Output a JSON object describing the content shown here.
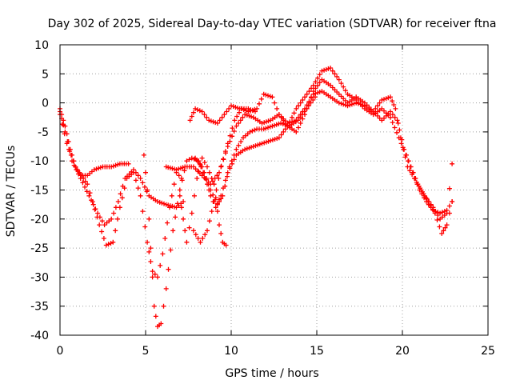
{
  "chart_data": {
    "type": "scatter",
    "title": "Day 302 of 2025, Sidereal Day-to-day VTEC variation (SDTVAR) for receiver ftna",
    "xlabel": "GPS time / hours",
    "ylabel": "SDTVAR / TECUs",
    "xlim": [
      0,
      25
    ],
    "ylim": [
      -40,
      10
    ],
    "xticks": [
      "0",
      "5",
      "10",
      "15",
      "20",
      "25"
    ],
    "yticks": [
      "10",
      "5",
      "0",
      "-5",
      "-10",
      "-15",
      "-20",
      "-25",
      "-30",
      "-35",
      "-40"
    ],
    "grid": true,
    "marker": "plus",
    "color": "#ff0000",
    "series": [
      {
        "points": [
          [
            0,
            -1
          ],
          [
            0.3,
            -4
          ],
          [
            0.6,
            -8
          ],
          [
            0.9,
            -11
          ],
          [
            1.2,
            -12.5
          ],
          [
            1.6,
            -12.5
          ],
          [
            2,
            -11.5
          ],
          [
            2.5,
            -11
          ],
          [
            3,
            -11
          ],
          [
            3.5,
            -10.5
          ],
          [
            4,
            -10.5
          ]
        ]
      },
      {
        "points": [
          [
            0,
            -1.5
          ],
          [
            0.3,
            -5
          ],
          [
            0.7,
            -10
          ],
          [
            1.2,
            -13
          ],
          [
            1.7,
            -16
          ],
          [
            2.2,
            -19
          ],
          [
            2.6,
            -21
          ],
          [
            3,
            -20
          ],
          [
            3.4,
            -17
          ],
          [
            3.8,
            -13
          ],
          [
            4.3,
            -11.5
          ],
          [
            4.7,
            -13
          ],
          [
            5.2,
            -16
          ],
          [
            5.7,
            -17
          ],
          [
            6.2,
            -17.5
          ],
          [
            6.8,
            -18
          ],
          [
            7.2,
            -17
          ]
        ]
      },
      {
        "points": [
          [
            0,
            -2
          ],
          [
            0.4,
            -7
          ],
          [
            0.9,
            -11
          ],
          [
            1.6,
            -14
          ],
          [
            1.9,
            -17
          ],
          [
            2.3,
            -21
          ],
          [
            2.7,
            -24.5
          ],
          [
            3.1,
            -24
          ],
          [
            3.5,
            -18
          ],
          [
            3.9,
            -13
          ],
          [
            4.3,
            -12
          ],
          [
            4.7,
            -16
          ],
          [
            5.1,
            -24
          ],
          [
            5.4,
            -29
          ],
          [
            5.7,
            -30
          ],
          [
            6,
            -26
          ],
          [
            6.4,
            -18
          ],
          [
            6.8,
            -12
          ],
          [
            7.1,
            -13
          ]
        ]
      },
      {
        "points": [
          [
            4.9,
            -9
          ],
          [
            5.1,
            -15
          ],
          [
            5.3,
            -25
          ],
          [
            5.5,
            -35
          ],
          [
            5.7,
            -38.5
          ],
          [
            5.9,
            -38
          ],
          [
            6.2,
            -32
          ],
          [
            6.6,
            -22
          ],
          [
            7,
            -15
          ],
          [
            7.4,
            -10
          ],
          [
            7.7,
            -9.5
          ],
          [
            8.1,
            -10
          ],
          [
            8.5,
            -13
          ],
          [
            8.8,
            -16
          ],
          [
            9.1,
            -18
          ],
          [
            9.4,
            -16
          ],
          [
            9.8,
            -12
          ],
          [
            10.3,
            -9
          ],
          [
            10.8,
            -8
          ],
          [
            11.3,
            -7.5
          ],
          [
            11.8,
            -7
          ],
          [
            12.3,
            -6.5
          ],
          [
            12.8,
            -6
          ],
          [
            13.3,
            -4
          ],
          [
            13.8,
            -1
          ],
          [
            14.3,
            1
          ],
          [
            14.8,
            3
          ],
          [
            15.3,
            5.5
          ],
          [
            15.8,
            6
          ],
          [
            16.3,
            4
          ],
          [
            16.8,
            1.5
          ],
          [
            17.3,
            0.5
          ],
          [
            17.8,
            -1
          ],
          [
            18.3,
            -2
          ],
          [
            18.8,
            -1
          ],
          [
            19.3,
            -2.5
          ],
          [
            19.8,
            -6
          ],
          [
            20.2,
            -9
          ],
          [
            20.6,
            -12
          ],
          [
            21,
            -15
          ],
          [
            21.4,
            -17
          ],
          [
            21.8,
            -18.5
          ],
          [
            22.2,
            -19
          ],
          [
            22.6,
            -18.5
          ],
          [
            22.9,
            -17
          ]
        ]
      },
      {
        "points": [
          [
            7.8,
            -22
          ],
          [
            8.2,
            -24
          ],
          [
            8.6,
            -22
          ],
          [
            9,
            -17
          ],
          [
            9.4,
            -11
          ],
          [
            9.8,
            -7
          ],
          [
            10.2,
            -3
          ],
          [
            10.6,
            -1
          ],
          [
            11,
            -1.5
          ],
          [
            11.5,
            -1
          ],
          [
            11.9,
            1.5
          ],
          [
            12.4,
            1
          ],
          [
            12.8,
            -2
          ],
          [
            13.3,
            -4
          ],
          [
            13.8,
            -5
          ],
          [
            14.3,
            -2
          ],
          [
            14.8,
            2
          ],
          [
            15.3,
            4
          ],
          [
            15.8,
            3
          ],
          [
            16.3,
            1.5
          ],
          [
            16.8,
            0
          ],
          [
            17.3,
            1
          ],
          [
            17.8,
            0
          ],
          [
            18.3,
            -1.5
          ],
          [
            18.8,
            0.5
          ],
          [
            19.3,
            1
          ],
          [
            19.6,
            -1
          ],
          [
            19.9,
            -6
          ],
          [
            20.3,
            -11
          ],
          [
            20.7,
            -13
          ],
          [
            21.1,
            -15
          ],
          [
            21.5,
            -17
          ],
          [
            21.9,
            -19
          ],
          [
            22.3,
            -22.5
          ],
          [
            22.6,
            -21
          ],
          [
            22.9,
            -17
          ]
        ]
      },
      {
        "points": [
          [
            6.2,
            -11
          ],
          [
            6.8,
            -11.5
          ],
          [
            7.3,
            -11
          ],
          [
            7.8,
            -11
          ],
          [
            8.3,
            -12.5
          ],
          [
            8.8,
            -14
          ],
          [
            9.3,
            -12
          ],
          [
            9.8,
            -7.5
          ],
          [
            10.3,
            -4
          ],
          [
            10.8,
            -2
          ],
          [
            11.3,
            -2.5
          ],
          [
            11.8,
            -3.5
          ],
          [
            12.3,
            -3
          ],
          [
            12.8,
            -2
          ],
          [
            13.3,
            -3.5
          ],
          [
            13.8,
            -3
          ],
          [
            14.3,
            -1
          ],
          [
            14.8,
            1.5
          ],
          [
            15.3,
            2
          ],
          [
            15.8,
            1
          ],
          [
            16.3,
            0
          ],
          [
            16.8,
            -0.5
          ],
          [
            17.3,
            0
          ],
          [
            17.8,
            -0.5
          ],
          [
            18.3,
            -1.5
          ],
          [
            18.8,
            -3
          ],
          [
            19.3,
            -1.5
          ],
          [
            19.7,
            -3
          ],
          [
            20.1,
            -8
          ],
          [
            20.5,
            -11
          ],
          [
            20.9,
            -14
          ],
          [
            21.3,
            -16
          ],
          [
            21.8,
            -18
          ],
          [
            22.2,
            -20
          ],
          [
            22.6,
            -19
          ],
          [
            22.9,
            -10.5
          ]
        ]
      },
      {
        "points": [
          [
            7.6,
            -3
          ],
          [
            7.9,
            -1
          ],
          [
            8.3,
            -1.5
          ],
          [
            8.7,
            -3
          ],
          [
            9.2,
            -3.5
          ],
          [
            9.6,
            -2
          ],
          [
            10,
            -0.5
          ],
          [
            10.5,
            -1
          ],
          [
            11,
            -1
          ],
          [
            11.4,
            -1.5
          ]
        ]
      },
      {
        "points": [
          [
            7.9,
            -9.5
          ],
          [
            8.3,
            -11
          ],
          [
            8.8,
            -15
          ],
          [
            9.2,
            -17.5
          ],
          [
            9.5,
            -16
          ],
          [
            9.9,
            -11
          ],
          [
            10.3,
            -8
          ],
          [
            10.7,
            -6
          ],
          [
            11.1,
            -5
          ],
          [
            11.5,
            -4.5
          ],
          [
            11.9,
            -4.5
          ],
          [
            12.4,
            -4
          ],
          [
            12.9,
            -3.5
          ],
          [
            13.4,
            -4
          ],
          [
            13.9,
            -3
          ],
          [
            14.4,
            -1
          ],
          [
            14.9,
            1
          ]
        ]
      },
      {
        "points": [
          [
            7,
            -16
          ],
          [
            7.2,
            -20
          ],
          [
            7.4,
            -24
          ],
          [
            7.7,
            -19
          ],
          [
            8,
            -13
          ],
          [
            8.3,
            -9.5
          ],
          [
            8.6,
            -11
          ],
          [
            9,
            -14
          ],
          [
            9.3,
            -21
          ],
          [
            9.5,
            -24
          ],
          [
            9.7,
            -24.5
          ]
        ]
      }
    ]
  }
}
